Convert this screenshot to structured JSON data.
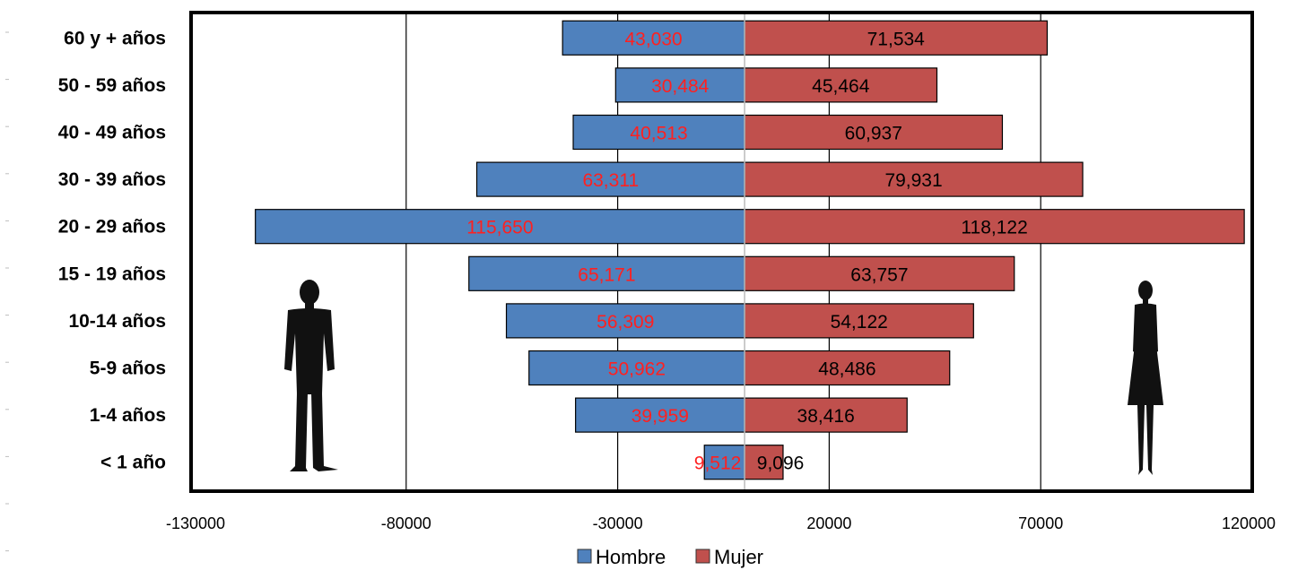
{
  "chart_data": {
    "type": "bar",
    "orientation": "horizontal",
    "categories": [
      "60 y + años",
      "50 - 59 años",
      "40 - 49 años",
      "30 - 39 años",
      "20 - 29 años",
      "15 - 19 años",
      "10-14 años",
      "5-9 años",
      "1-4 años",
      "< 1 año"
    ],
    "series": [
      {
        "name": "Hombre",
        "color": "#4f81bd",
        "label_color": "#ff2020",
        "values": [
          -43030,
          -30484,
          -40513,
          -63311,
          -115650,
          -65171,
          -56309,
          -50962,
          -39959,
          -9512
        ],
        "labels": [
          "43,030",
          "30,484",
          "40,513",
          "63,311",
          "115,650",
          "65,171",
          "56,309",
          "50,962",
          "39,959",
          "9,512"
        ]
      },
      {
        "name": "Mujer",
        "color": "#c0504d",
        "label_color": "#000000",
        "values": [
          71534,
          45464,
          60937,
          79931,
          118122,
          63757,
          54122,
          48486,
          38416,
          9096
        ],
        "labels": [
          "71,534",
          "45,464",
          "60,937",
          "79,931",
          "118,122",
          "63,757",
          "54,122",
          "48,486",
          "38,416",
          "9,096"
        ]
      }
    ],
    "xlim": [
      -130000,
      120000
    ],
    "x_ticks": [
      -130000,
      -80000,
      -30000,
      20000,
      70000,
      120000
    ],
    "x_tick_labels": [
      "-130000",
      "-80000",
      "-30000",
      "20000",
      "70000",
      "120000"
    ],
    "grid": "vertical",
    "legend_position": "bottom-center",
    "decorations": [
      "male-silhouette-icon",
      "female-silhouette-icon"
    ]
  }
}
